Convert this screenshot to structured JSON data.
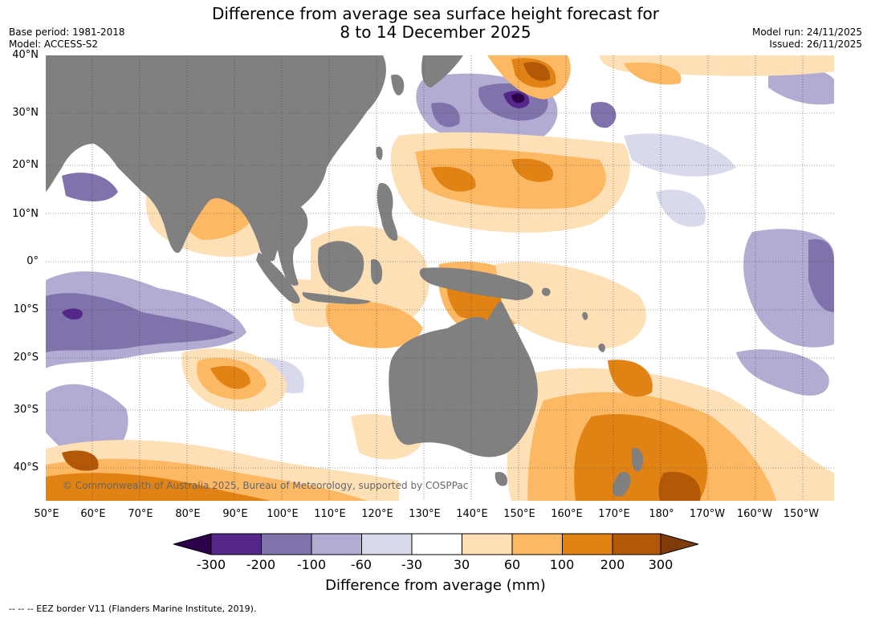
{
  "title": {
    "line1": "Difference from average sea surface height forecast for",
    "line2": "8 to 14 December 2025"
  },
  "meta": {
    "base_period": "Base period: 1981-2018",
    "model": "Model: ACCESS-S2",
    "model_run": "Model run: 24/11/2025",
    "issued": "Issued: 26/11/2025"
  },
  "map": {
    "lat_labels": [
      "40°N",
      "30°N",
      "20°N",
      "10°N",
      "0°",
      "10°S",
      "20°S",
      "30°S",
      "40°S"
    ],
    "lon_labels": [
      "50°E",
      "60°E",
      "70°E",
      "80°E",
      "90°E",
      "100°E",
      "110°E",
      "120°E",
      "130°E",
      "140°E",
      "150°E",
      "160°E",
      "170°E",
      "180°",
      "170°W",
      "160°W",
      "150°W"
    ],
    "copyright": "© Commonwealth of Australia 2025, Bureau of Meteorology, supported by COSPPac",
    "land_color": "#808080"
  },
  "legend": {
    "tick_labels": [
      "-300",
      "-200",
      "-100",
      "-60",
      "-30",
      "30",
      "60",
      "100",
      "200",
      "300"
    ],
    "colors": [
      "#2d004b",
      "#542788",
      "#8073ac",
      "#b2abd2",
      "#d8daeb",
      "#ffffff",
      "#fee0b6",
      "#fdb863",
      "#e08214",
      "#b35806",
      "#7f3b08"
    ],
    "title": "Difference from average (mm)"
  },
  "footer": "--  --  -- EEZ border V11 (Flanders Marine Institute, 2019)."
}
